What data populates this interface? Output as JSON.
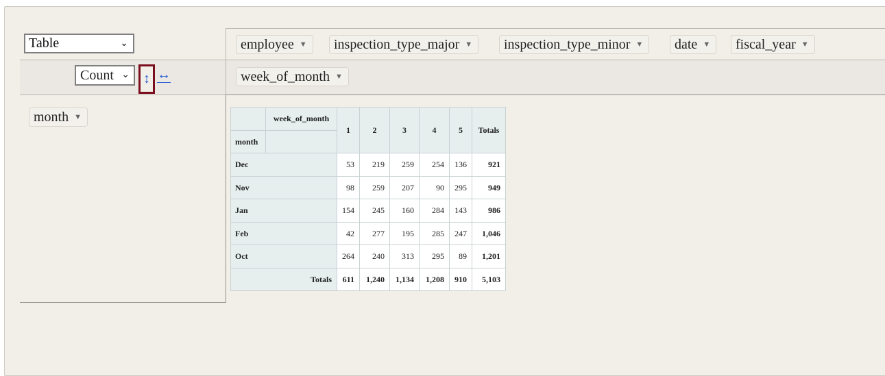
{
  "renderer": {
    "selected": "Table"
  },
  "aggregator": {
    "selected": "Count",
    "row_sort_icon": "↕",
    "col_order_icon": "↔"
  },
  "unused_fields": [
    "employee",
    "inspection_type_major",
    "inspection_type_minor",
    "date",
    "fiscal_year"
  ],
  "col_fields": [
    "week_of_month"
  ],
  "row_fields": [
    "month"
  ],
  "table": {
    "col_attr": "week_of_month",
    "row_attr": "month",
    "col_headers": [
      "1",
      "2",
      "3",
      "4",
      "5",
      "Totals"
    ],
    "rows": [
      {
        "label": "Dec",
        "values": [
          "53",
          "219",
          "259",
          "254",
          "136"
        ],
        "total": "921"
      },
      {
        "label": "Nov",
        "values": [
          "98",
          "259",
          "207",
          "90",
          "295"
        ],
        "total": "949"
      },
      {
        "label": "Jan",
        "values": [
          "154",
          "245",
          "160",
          "284",
          "143"
        ],
        "total": "986"
      },
      {
        "label": "Feb",
        "values": [
          "42",
          "277",
          "195",
          "285",
          "247"
        ],
        "total": "1,046"
      },
      {
        "label": "Oct",
        "values": [
          "264",
          "240",
          "313",
          "295",
          "89"
        ],
        "total": "1,201"
      }
    ],
    "totals_label": "Totals",
    "col_totals": [
      "611",
      "1,240",
      "1,134",
      "1,208",
      "910"
    ],
    "grand_total": "5,103"
  }
}
